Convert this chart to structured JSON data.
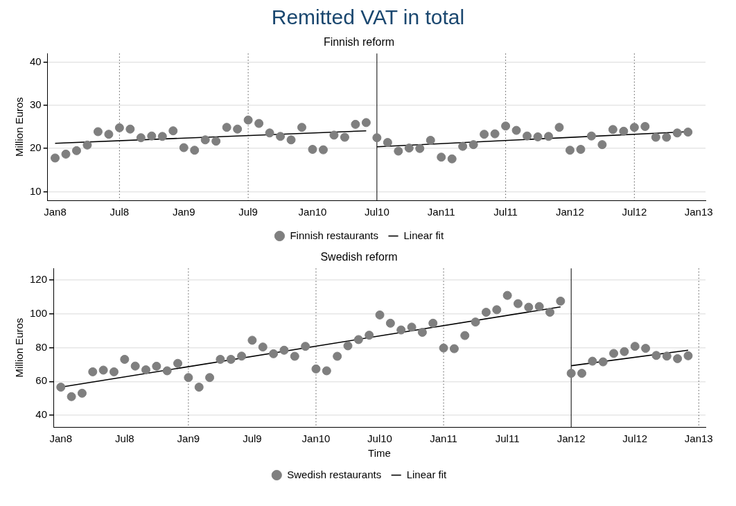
{
  "chart_data": [
    {
      "type": "scatter",
      "title": "Remitted VAT in total",
      "subtitle": "Finnish reform",
      "ylabel": "Million Euros",
      "x": [
        "2008-01",
        "2008-02",
        "2008-03",
        "2008-04",
        "2008-05",
        "2008-06",
        "2008-07",
        "2008-08",
        "2008-09",
        "2008-10",
        "2008-11",
        "2008-12",
        "2009-01",
        "2009-02",
        "2009-03",
        "2009-04",
        "2009-05",
        "2009-06",
        "2009-07",
        "2009-08",
        "2009-09",
        "2009-10",
        "2009-11",
        "2009-12",
        "2010-01",
        "2010-02",
        "2010-03",
        "2010-04",
        "2010-05",
        "2010-06",
        "2010-07",
        "2010-08",
        "2010-09",
        "2010-10",
        "2010-11",
        "2010-12",
        "2011-01",
        "2011-02",
        "2011-03",
        "2011-04",
        "2011-05",
        "2011-06",
        "2011-07",
        "2011-08",
        "2011-09",
        "2011-10",
        "2011-11",
        "2011-12",
        "2012-01",
        "2012-02",
        "2012-03",
        "2012-04",
        "2012-05",
        "2012-06",
        "2012-07",
        "2012-08",
        "2012-09",
        "2012-10",
        "2012-11",
        "2012-12"
      ],
      "series": [
        {
          "name": "Finnish restaurants",
          "marker": "circle",
          "color": "#7f7f7f",
          "values": [
            17.8,
            18.7,
            19.5,
            20.8,
            23.9,
            23.3,
            24.8,
            24.5,
            22.5,
            22.9,
            22.8,
            24.1,
            20.2,
            19.6,
            22.0,
            21.7,
            24.9,
            24.5,
            26.6,
            25.8,
            23.6,
            22.8,
            22.0,
            24.9,
            19.8,
            19.7,
            23.1,
            22.6,
            25.6,
            26.0,
            22.5,
            21.4,
            19.4,
            20.1,
            20.0,
            21.9,
            18.0,
            17.6,
            20.5,
            20.9,
            23.3,
            23.4,
            25.2,
            24.2,
            22.9,
            22.7,
            22.8,
            24.9,
            19.6,
            19.8,
            22.9,
            20.9,
            24.4,
            24.0,
            24.9,
            25.1,
            22.6,
            22.6,
            23.6,
            23.8
          ]
        },
        {
          "name": "Linear fit",
          "type": "line",
          "marker": "none",
          "color": "#000000",
          "x": [
            "2008-01",
            "2010-06"
          ],
          "values": [
            21.2,
            24.1
          ]
        },
        {
          "type": "line",
          "marker": "none",
          "color": "#000000",
          "x": [
            "2010-07",
            "2012-12"
          ],
          "values": [
            20.4,
            23.9
          ]
        }
      ],
      "xlim": [
        "2007-12-10",
        "2013-01-20"
      ],
      "xticks": [
        {
          "value": "2008-01",
          "label": "Jan8"
        },
        {
          "value": "2008-07",
          "label": "Jul8"
        },
        {
          "value": "2009-01",
          "label": "Jan9"
        },
        {
          "value": "2009-07",
          "label": "Jul9"
        },
        {
          "value": "2010-01",
          "label": "Jan10"
        },
        {
          "value": "2010-07",
          "label": "Jul10"
        },
        {
          "value": "2011-01",
          "label": "Jan11"
        },
        {
          "value": "2011-07",
          "label": "Jul11"
        },
        {
          "value": "2012-01",
          "label": "Jan12"
        },
        {
          "value": "2012-07",
          "label": "Jul12"
        },
        {
          "value": "2013-01",
          "label": "Jan13"
        }
      ],
      "ylim": [
        8,
        42
      ],
      "yticks": [
        10,
        20,
        30,
        40
      ],
      "grid": "y",
      "legend": "bottom",
      "line_style": "solid",
      "ref_lines": [
        {
          "axis": "x",
          "value": "2008-07",
          "line_style": "dotted",
          "color": "#555555"
        },
        {
          "axis": "x",
          "value": "2009-07",
          "line_style": "dotted",
          "color": "#555555"
        },
        {
          "axis": "x",
          "value": "2010-07",
          "line_style": "solid",
          "color": "#000000"
        },
        {
          "axis": "x",
          "value": "2011-07",
          "line_style": "dotted",
          "color": "#555555"
        },
        {
          "axis": "x",
          "value": "2012-07",
          "line_style": "dotted",
          "color": "#555555"
        }
      ]
    },
    {
      "type": "scatter",
      "subtitle": "Swedish reform",
      "xlabel": "Time",
      "ylabel": "Million Euros",
      "x": [
        "2008-01",
        "2008-02",
        "2008-03",
        "2008-04",
        "2008-05",
        "2008-06",
        "2008-07",
        "2008-08",
        "2008-09",
        "2008-10",
        "2008-11",
        "2008-12",
        "2009-01",
        "2009-02",
        "2009-03",
        "2009-04",
        "2009-05",
        "2009-06",
        "2009-07",
        "2009-08",
        "2009-09",
        "2009-10",
        "2009-11",
        "2009-12",
        "2010-01",
        "2010-02",
        "2010-03",
        "2010-04",
        "2010-05",
        "2010-06",
        "2010-07",
        "2010-08",
        "2010-09",
        "2010-10",
        "2010-11",
        "2010-12",
        "2011-01",
        "2011-02",
        "2011-03",
        "2011-04",
        "2011-05",
        "2011-06",
        "2011-07",
        "2011-08",
        "2011-09",
        "2011-10",
        "2011-11",
        "2011-12",
        "2012-01",
        "2012-02",
        "2012-03",
        "2012-04",
        "2012-05",
        "2012-06",
        "2012-07",
        "2012-08",
        "2012-09",
        "2012-10",
        "2012-11",
        "2012-12"
      ],
      "series": [
        {
          "name": "Swedish restaurants",
          "marker": "circle",
          "color": "#7f7f7f",
          "values": [
            56.6,
            51.0,
            53.0,
            65.7,
            66.7,
            65.7,
            73.1,
            69.1,
            66.9,
            69.0,
            66.3,
            70.7,
            62.3,
            56.6,
            62.3,
            73.1,
            73.1,
            75.0,
            84.4,
            80.4,
            76.4,
            78.5,
            74.9,
            80.8,
            67.4,
            66.3,
            74.9,
            81.1,
            84.8,
            87.4,
            99.4,
            94.5,
            90.5,
            92.2,
            89.1,
            94.5,
            79.8,
            79.4,
            87.2,
            95.2,
            101.0,
            102.5,
            111.0,
            106.1,
            104.0,
            104.4,
            101.0,
            107.6,
            64.8,
            64.8,
            72.0,
            71.6,
            76.6,
            77.7,
            80.8,
            79.6,
            75.4,
            75.0,
            73.5,
            75.2
          ]
        },
        {
          "name": "Linear fit",
          "type": "line",
          "marker": "none",
          "color": "#000000",
          "x": [
            "2008-01",
            "2011-12"
          ],
          "values": [
            56.6,
            104.2
          ]
        },
        {
          "type": "line",
          "marker": "none",
          "color": "#000000",
          "x": [
            "2012-01",
            "2012-12"
          ],
          "values": [
            69.3,
            78.5
          ]
        }
      ],
      "xlim": [
        "2007-12-10",
        "2013-01-20"
      ],
      "xticks": [
        {
          "value": "2008-01",
          "label": "Jan8"
        },
        {
          "value": "2008-07",
          "label": "Jul8"
        },
        {
          "value": "2009-01",
          "label": "Jan9"
        },
        {
          "value": "2009-07",
          "label": "Jul9"
        },
        {
          "value": "2010-01",
          "label": "Jan10"
        },
        {
          "value": "2010-07",
          "label": "Jul10"
        },
        {
          "value": "2011-01",
          "label": "Jan11"
        },
        {
          "value": "2011-07",
          "label": "Jul11"
        },
        {
          "value": "2012-01",
          "label": "Jan12"
        },
        {
          "value": "2012-07",
          "label": "Jul12"
        },
        {
          "value": "2013-01",
          "label": "Jan13"
        }
      ],
      "ylim": [
        33,
        127
      ],
      "yticks": [
        40,
        60,
        80,
        100,
        120
      ],
      "grid": "y",
      "legend": "bottom",
      "line_style": "solid",
      "ref_lines": [
        {
          "axis": "x",
          "value": "2009-01",
          "line_style": "dotted",
          "color": "#555555"
        },
        {
          "axis": "x",
          "value": "2010-01",
          "line_style": "dotted",
          "color": "#555555"
        },
        {
          "axis": "x",
          "value": "2011-01",
          "line_style": "dotted",
          "color": "#555555"
        },
        {
          "axis": "x",
          "value": "2012-01",
          "line_style": "solid",
          "color": "#000000"
        },
        {
          "axis": "x",
          "value": "2013-01",
          "line_style": "dotted",
          "color": "#555555"
        }
      ]
    }
  ]
}
